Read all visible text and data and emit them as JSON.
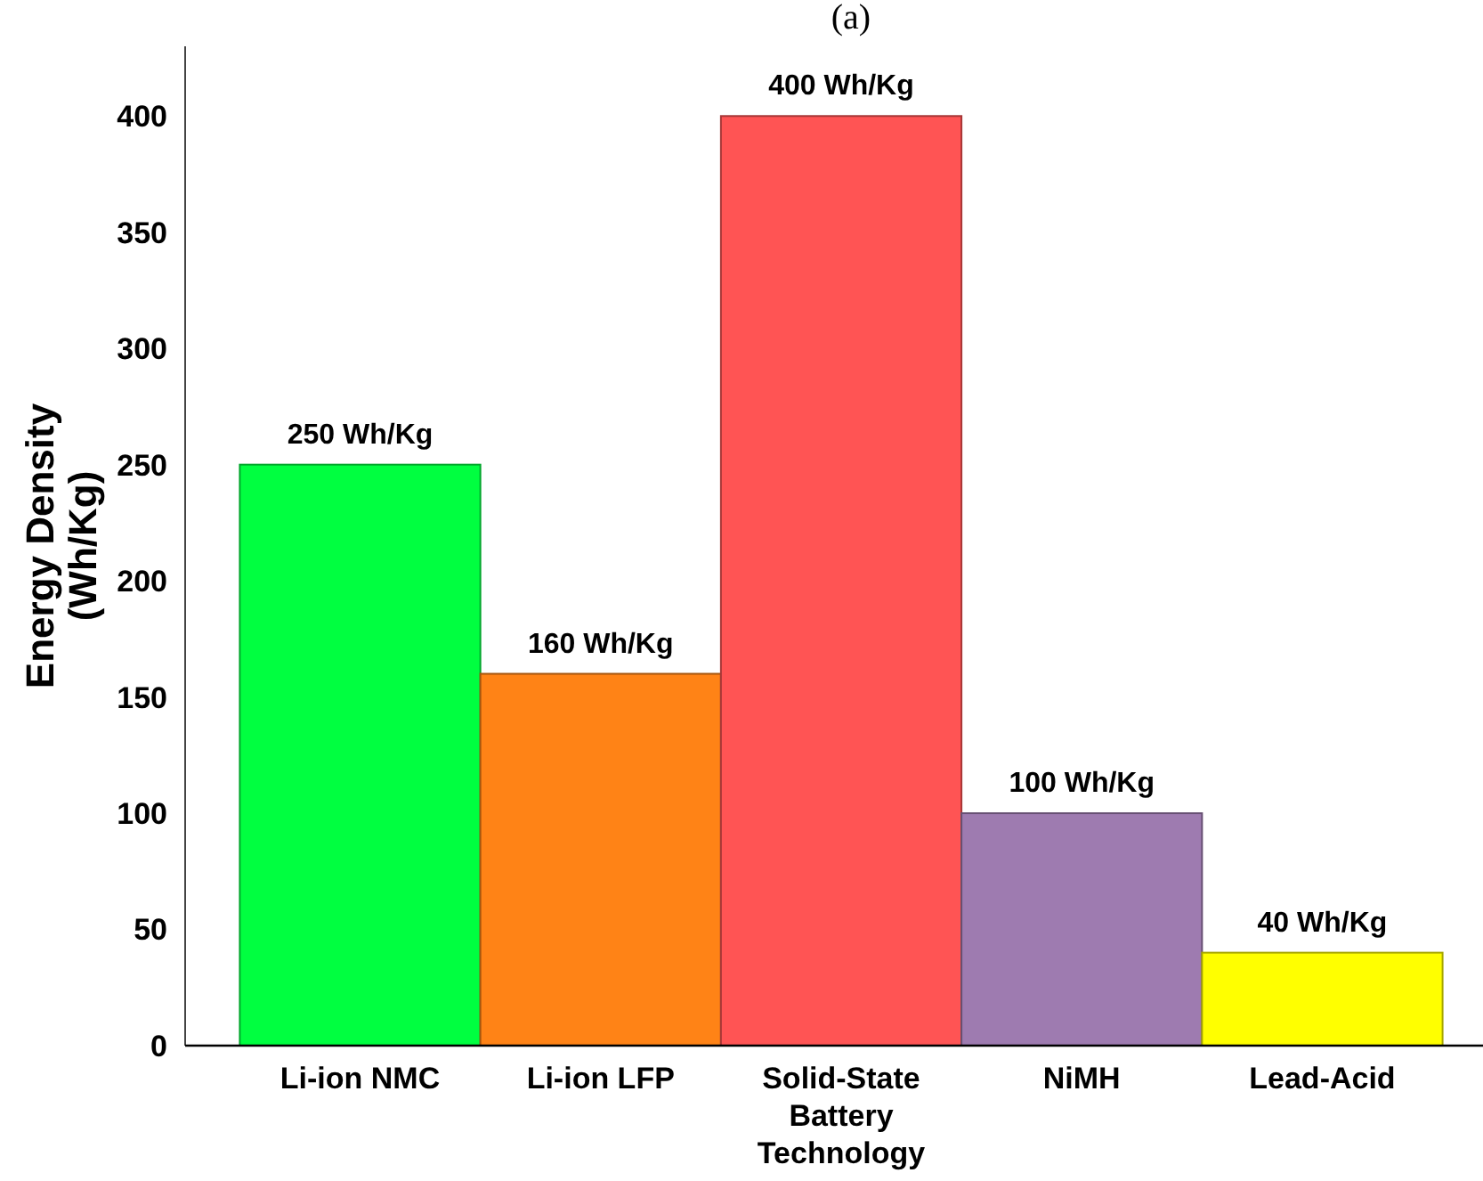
{
  "chart_data": {
    "type": "bar",
    "title": "(a)",
    "ylabel": "Energy Density (Wh/Kg)",
    "categories": [
      "Li-ion NMC",
      "Li-ion LFP",
      "Solid-State Battery Technology",
      "NiMH",
      "Lead-Acid"
    ],
    "values": [
      250,
      160,
      400,
      100,
      40
    ],
    "colors": [
      "#00ff40",
      "#ff8316",
      "#ff5454",
      "#9e7bb0",
      "#ffff00"
    ],
    "value_labels": [
      "250 Wh/Kg",
      "160 Wh/Kg",
      "400 Wh/Kg",
      "100 Wh/Kg",
      "40 Wh/Kg"
    ],
    "ylim": [
      0,
      430
    ],
    "yticks": [
      0,
      50,
      100,
      150,
      200,
      250,
      300,
      350,
      400
    ],
    "grid": false
  }
}
